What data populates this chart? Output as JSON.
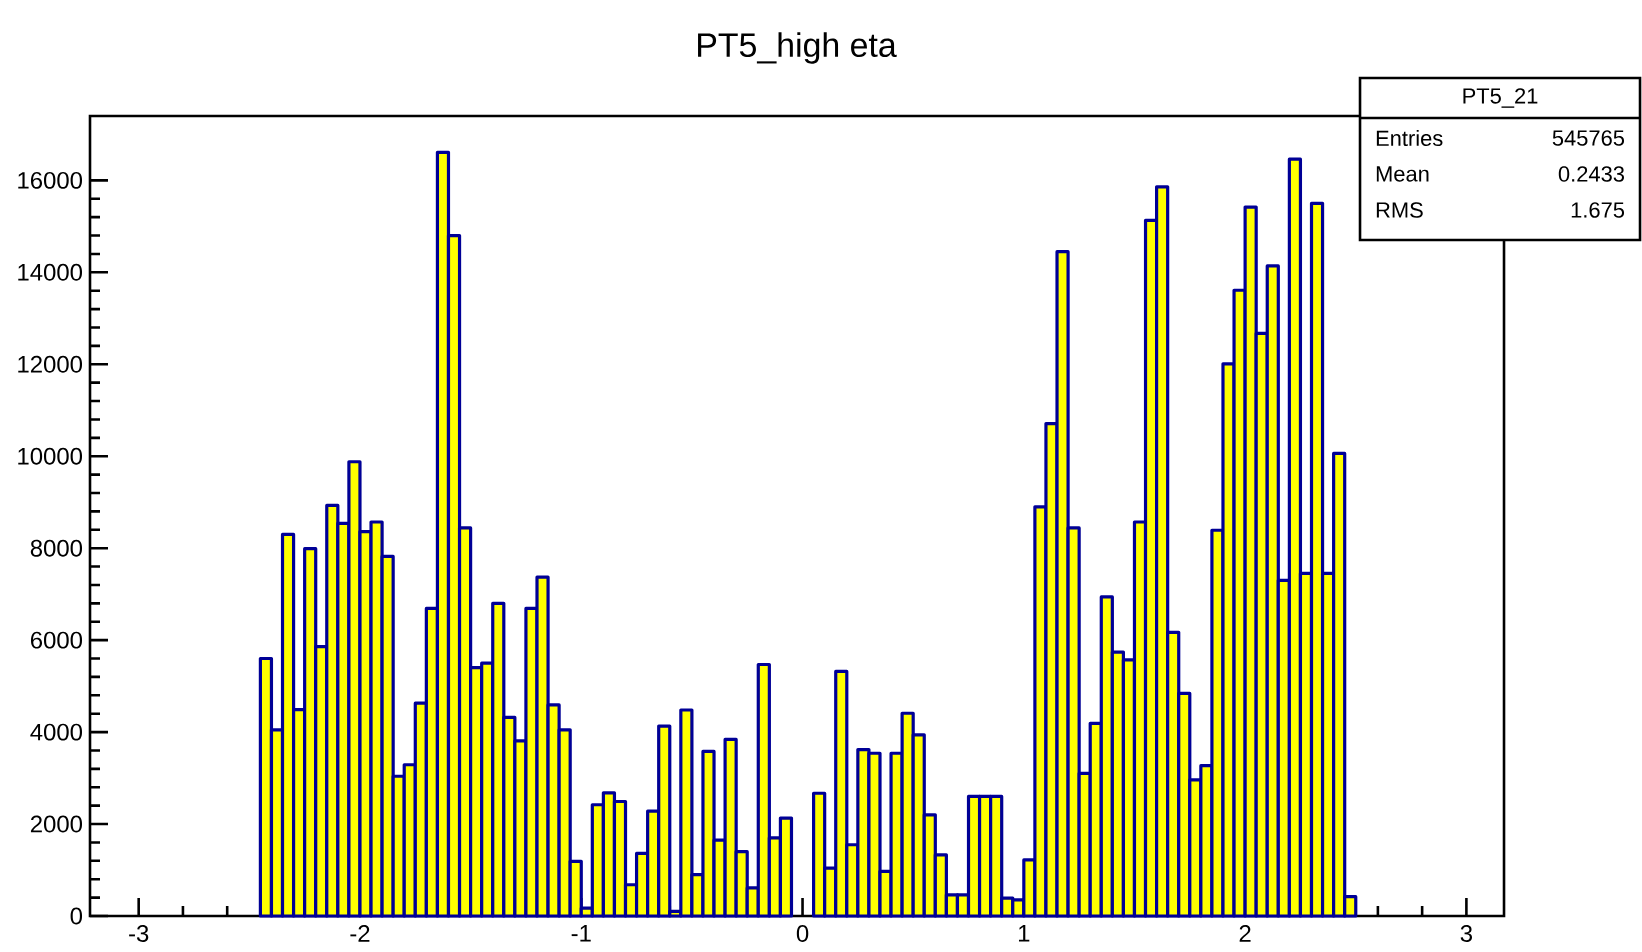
{
  "chart_data": {
    "type": "histogram",
    "title": "PT5_high eta",
    "bins": [
      -2.45,
      -2.4,
      -2.35,
      -2.3,
      -2.25,
      -2.2,
      -2.15,
      -2.1,
      -2.05,
      -2.0,
      -1.95,
      -1.9,
      -1.85,
      -1.8,
      -1.75,
      -1.7,
      -1.65,
      -1.6,
      -1.55,
      -1.5,
      -1.45,
      -1.4,
      -1.35,
      -1.3,
      -1.25,
      -1.2,
      -1.15,
      -1.1,
      -1.05,
      -1.0,
      -0.95,
      -0.9,
      -0.85,
      -0.8,
      -0.75,
      -0.7,
      -0.65,
      -0.6,
      -0.55,
      -0.5,
      -0.45,
      -0.4,
      -0.35,
      -0.3,
      -0.25,
      -0.2,
      -0.15,
      -0.1,
      -0.05,
      0.0,
      0.05,
      0.1,
      0.15,
      0.2,
      0.25,
      0.3,
      0.35,
      0.4,
      0.45,
      0.5,
      0.55,
      0.6,
      0.65,
      0.7,
      0.75,
      0.8,
      0.85,
      0.9,
      0.95,
      1.0,
      1.05,
      1.1,
      1.15,
      1.2,
      1.25,
      1.3,
      1.35,
      1.4,
      1.45,
      1.5,
      1.55,
      1.6,
      1.65,
      1.7,
      1.75,
      1.8,
      1.85,
      1.9,
      1.95,
      2.0,
      2.05,
      2.1,
      2.15,
      2.2,
      2.25,
      2.3,
      2.35,
      2.4,
      2.45,
      2.5
    ],
    "values": [
      5600,
      4050,
      8300,
      4490,
      7990,
      5860,
      8930,
      8540,
      9880,
      8360,
      8570,
      7820,
      3040,
      3290,
      4630,
      6690,
      16610,
      14800,
      8440,
      5400,
      5500,
      6800,
      4320,
      3810,
      6690,
      7370,
      4590,
      4050,
      1190,
      170,
      2420,
      2680,
      2490,
      680,
      1360,
      2280,
      4130,
      100,
      4480,
      900,
      3580,
      1650,
      3840,
      1400,
      610,
      5470,
      1700,
      2130,
      0,
      0,
      2670,
      1040,
      5320,
      1550,
      3620,
      3540,
      970,
      3540,
      4410,
      3940,
      2200,
      1330,
      460,
      460,
      2600,
      2600,
      2600,
      390,
      350,
      1220,
      8900,
      10710,
      14450,
      8440,
      3100,
      4190,
      6940,
      5740,
      5570,
      8570,
      15130,
      15860,
      6170,
      4840,
      2960,
      3270,
      8390,
      12010,
      13610,
      15420,
      12670,
      14140,
      7300,
      16460,
      7450,
      15500,
      7450,
      10060,
      420
    ],
    "color": "#ffff00",
    "xlim": [
      -3.22,
      3.17
    ],
    "ylim": [
      0,
      17400
    ],
    "xticks": [
      -3,
      -2,
      -1,
      0,
      1,
      2,
      3
    ],
    "yticks": [
      0,
      2000,
      4000,
      6000,
      8000,
      10000,
      12000,
      14000,
      16000
    ],
    "annotations": [
      "PT5_21",
      "Entries",
      "545765",
      "Mean",
      "0.2433",
      "RMS",
      "1.675"
    ]
  }
}
